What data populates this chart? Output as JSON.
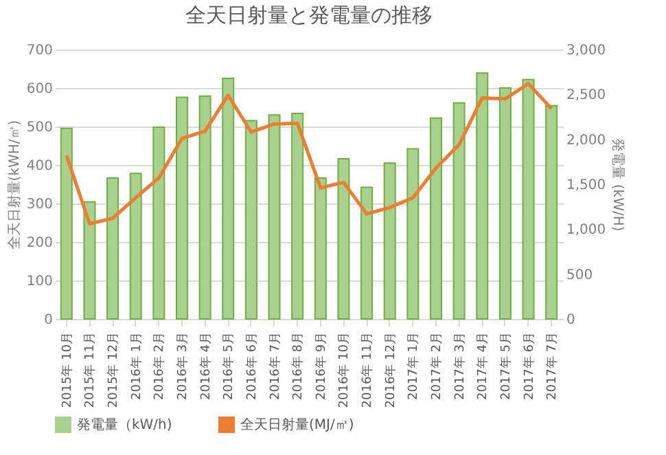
{
  "chart_data": {
    "type": "bar",
    "title": "全天日射量と発電量の推移",
    "categories": [
      "2015年 10月",
      "2015年 11月",
      "2015年 12月",
      "2016年 1月",
      "2016年 2月",
      "2016年 3月",
      "2016年 4月",
      "2016年 5月",
      "2016年 6月",
      "2016年 7月",
      "2016年 8月",
      "2016年 9月",
      "2016年 10月",
      "2016年 11月",
      "2016年 12月",
      "2017年 1月",
      "2017年 2月",
      "2017年 3月",
      "2017年 4月",
      "2017年 5月",
      "2017年 6月",
      "2017年 7月"
    ],
    "series": [
      {
        "name": "発電量（kW/h)",
        "color": "#a9d18e",
        "values": [
          495,
          304,
          366,
          378,
          498,
          576,
          579,
          625,
          515,
          530,
          534,
          366,
          416,
          342,
          405,
          442,
          522,
          561,
          639,
          600,
          622,
          554
        ]
      },
      {
        "name": "全天日射量(MJ/㎡)",
        "type": "line",
        "axis": "y2",
        "color": "#ed7d31",
        "values": [
          1820,
          1060,
          1120,
          1350,
          1570,
          2010,
          2090,
          2490,
          2080,
          2170,
          2180,
          1460,
          1520,
          1170,
          1240,
          1350,
          1680,
          1940,
          2460,
          2450,
          2620,
          2340
        ]
      }
    ],
    "ylabel": "全天日射量(kWH/㎡)",
    "y2label": "発電量 (kW/H)",
    "ylim": [
      0,
      700
    ],
    "yticks": [
      0,
      100,
      200,
      300,
      400,
      500,
      600,
      700
    ],
    "y2lim": [
      0,
      3000
    ],
    "y2ticks": [
      0,
      {
        "value": 500,
        "label": "500"
      },
      {
        "value": 1000,
        "label": "1,000"
      },
      {
        "value": 1500,
        "label": "1,500"
      },
      {
        "value": 2000,
        "label": "2,000"
      },
      {
        "value": 2500,
        "label": "2,500"
      },
      {
        "value": 3000,
        "label": "3,000"
      }
    ],
    "grid": "y",
    "legend": "bottom",
    "marker": "none",
    "line_style": "solid"
  }
}
